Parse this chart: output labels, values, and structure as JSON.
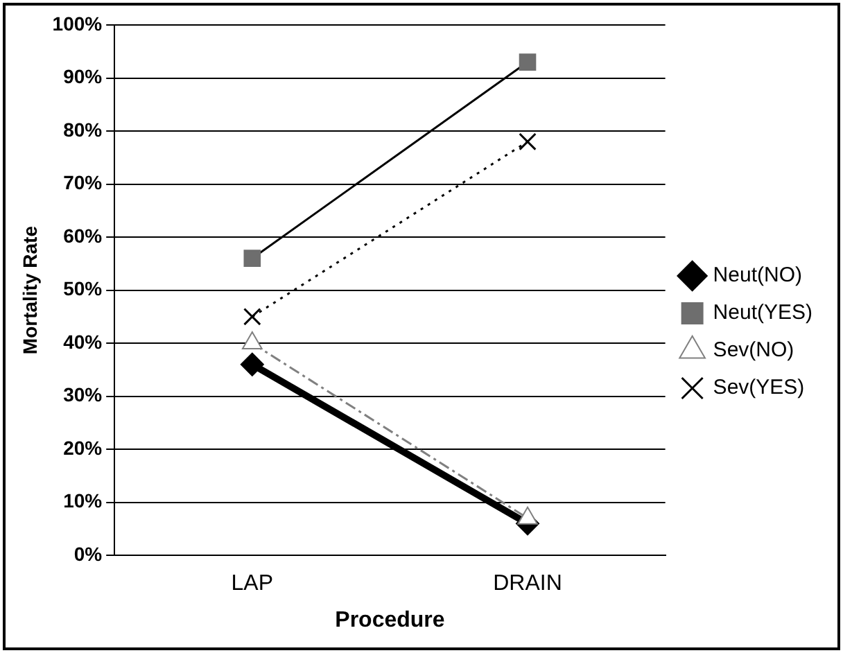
{
  "chart_data": {
    "type": "line",
    "xlabel": "Procedure",
    "ylabel": "Mortality Rate",
    "categories": [
      "LAP",
      "DRAIN"
    ],
    "series": [
      {
        "name": "Neut(NO)",
        "color": "#000000",
        "values": [
          36,
          6
        ],
        "marker": "diamond",
        "line_style": "solid"
      },
      {
        "name": "Neut(YES)",
        "color": "#6e6e6e",
        "values": [
          56,
          93
        ],
        "marker": "square",
        "line_style": "solid"
      },
      {
        "name": "Sev(NO)",
        "color": "#808080",
        "values": [
          40,
          7
        ],
        "marker": "triangle",
        "line_style": "dashed"
      },
      {
        "name": "Sev(YES)",
        "color": "#000000",
        "values": [
          45,
          78
        ],
        "marker": "cross",
        "line_style": "dotted"
      }
    ],
    "ylim": [
      0,
      100
    ],
    "yticks": [
      {
        "value": 0,
        "label": "0%"
      },
      {
        "value": 10,
        "label": "10%"
      },
      {
        "value": 20,
        "label": "20%"
      },
      {
        "value": 30,
        "label": "30%"
      },
      {
        "value": 40,
        "label": "40%"
      },
      {
        "value": 50,
        "label": "50%"
      },
      {
        "value": 60,
        "label": "60%"
      },
      {
        "value": 70,
        "label": "70%"
      },
      {
        "value": 80,
        "label": "80%"
      },
      {
        "value": 90,
        "label": "90%"
      },
      {
        "value": 100,
        "label": "100%"
      }
    ],
    "grid": "y",
    "legend": "right"
  }
}
